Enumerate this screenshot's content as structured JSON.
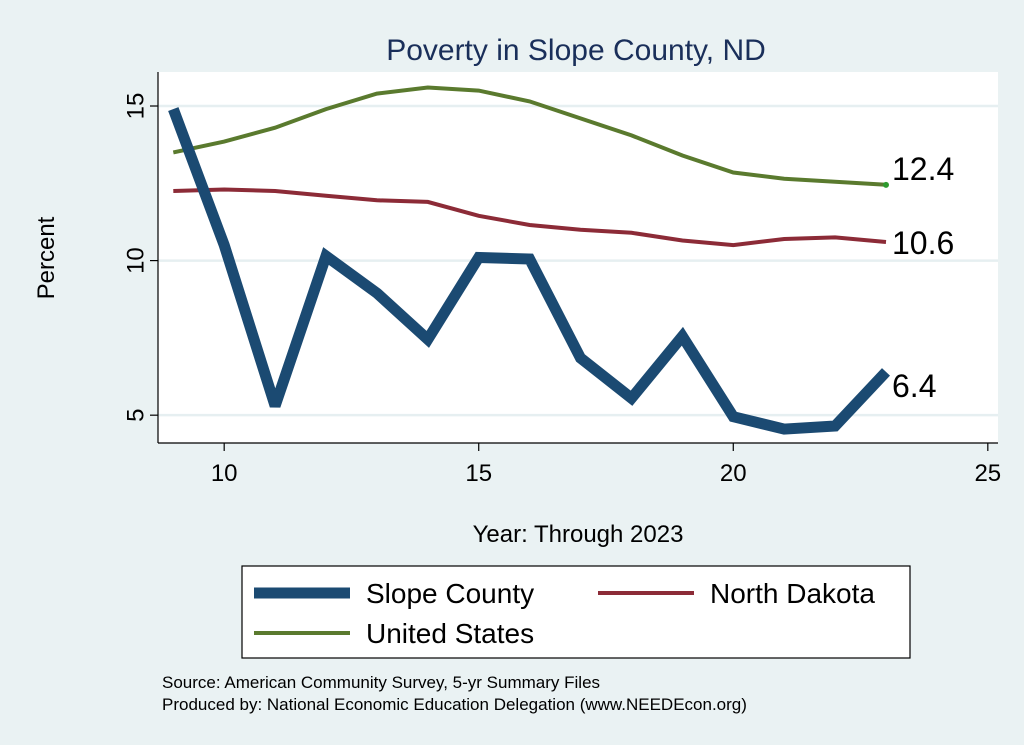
{
  "chart_data": {
    "type": "line",
    "title": "Poverty in Slope County, ND",
    "xlabel": "Year: Through 2023",
    "ylabel": "Percent",
    "xlim": [
      8.7,
      25.2
    ],
    "ylim": [
      4.1,
      16.1
    ],
    "xticks": [
      10,
      15,
      20,
      25
    ],
    "yticks": [
      5,
      10,
      15
    ],
    "grid": true,
    "legend_position": "bottom",
    "series": [
      {
        "name": "Slope County",
        "color": "#1b4a72",
        "x": [
          9,
          10,
          11,
          12,
          13,
          14,
          15,
          16,
          17,
          18,
          19,
          20,
          21,
          22,
          23
        ],
        "values": [
          14.9,
          10.5,
          5.3,
          10.15,
          8.95,
          7.45,
          10.1,
          10.05,
          6.85,
          5.55,
          7.55,
          4.95,
          4.55,
          4.65,
          6.4
        ],
        "end_label": "6.4"
      },
      {
        "name": "North Dakota",
        "color": "#8c2b37",
        "x": [
          9,
          10,
          11,
          12,
          13,
          14,
          15,
          16,
          17,
          18,
          19,
          20,
          21,
          22,
          23
        ],
        "values": [
          12.25,
          12.3,
          12.25,
          12.1,
          11.95,
          11.9,
          11.45,
          11.15,
          11.0,
          10.9,
          10.65,
          10.5,
          10.7,
          10.75,
          10.6
        ],
        "end_label": "10.6"
      },
      {
        "name": "United States",
        "color": "#5a7a2e",
        "x": [
          9,
          10,
          11,
          12,
          13,
          14,
          15,
          16,
          17,
          18,
          19,
          20,
          21,
          22,
          23
        ],
        "values": [
          13.5,
          13.85,
          14.3,
          14.9,
          15.4,
          15.6,
          15.5,
          15.15,
          14.6,
          14.05,
          13.4,
          12.85,
          12.65,
          12.55,
          12.45
        ],
        "end_label": "12.4"
      }
    ],
    "notes": [
      "Source: American Community Survey, 5-yr Summary Files",
      "Produced by: National Economic Education Delegation (www.NEEDEcon.org)"
    ]
  }
}
